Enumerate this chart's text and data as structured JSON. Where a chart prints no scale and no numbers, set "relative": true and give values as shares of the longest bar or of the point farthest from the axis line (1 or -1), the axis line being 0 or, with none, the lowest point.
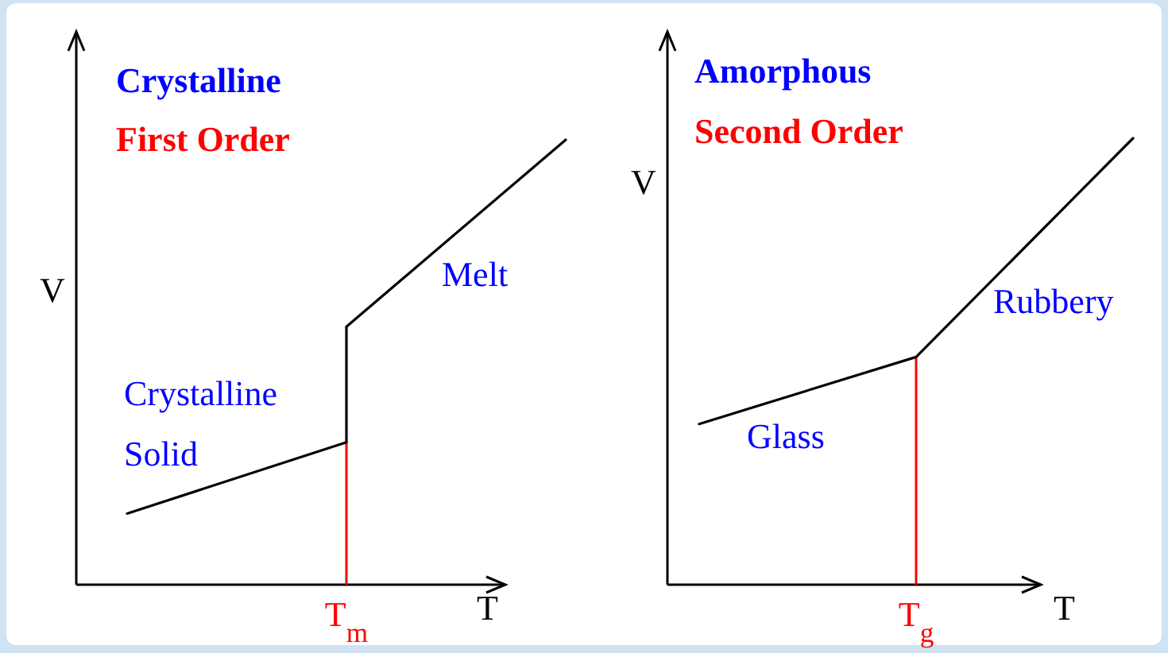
{
  "chart_data": [
    {
      "type": "line",
      "title": "Crystalline",
      "subtitle": "First Order",
      "xlabel": "T",
      "ylabel": "V",
      "relative": true,
      "categories": [
        null,
        null,
        null
      ],
      "marker": "none",
      "line_style": "solid",
      "series": [
        {
          "color": "#000000",
          "values": [
            0.16,
            0.32,
            null
          ]
        },
        {
          "color": "#000000",
          "values": [
            null,
            0.58,
            1
          ]
        }
      ],
      "ref_lines": [
        {
          "axis": "x",
          "label": "T$_{m}$",
          "color": "#ff0000"
        }
      ],
      "annotations": [
        "Melt",
        "Crystalline\nSolid"
      ]
    },
    {
      "type": "line",
      "title": "Amorphous",
      "subtitle": "Second Order",
      "xlabel": "T",
      "ylabel": "V",
      "relative": true,
      "categories": [
        null,
        null,
        null
      ],
      "marker": "none",
      "line_style": "solid",
      "series": [
        {
          "color": "#000000",
          "values": [
            0.36,
            0.51,
            1
          ]
        }
      ],
      "ref_lines": [
        {
          "axis": "x",
          "label": "T$_{g}$",
          "color": "#ff0000"
        }
      ],
      "annotations": [
        "Glass",
        "Rubbery"
      ]
    }
  ]
}
